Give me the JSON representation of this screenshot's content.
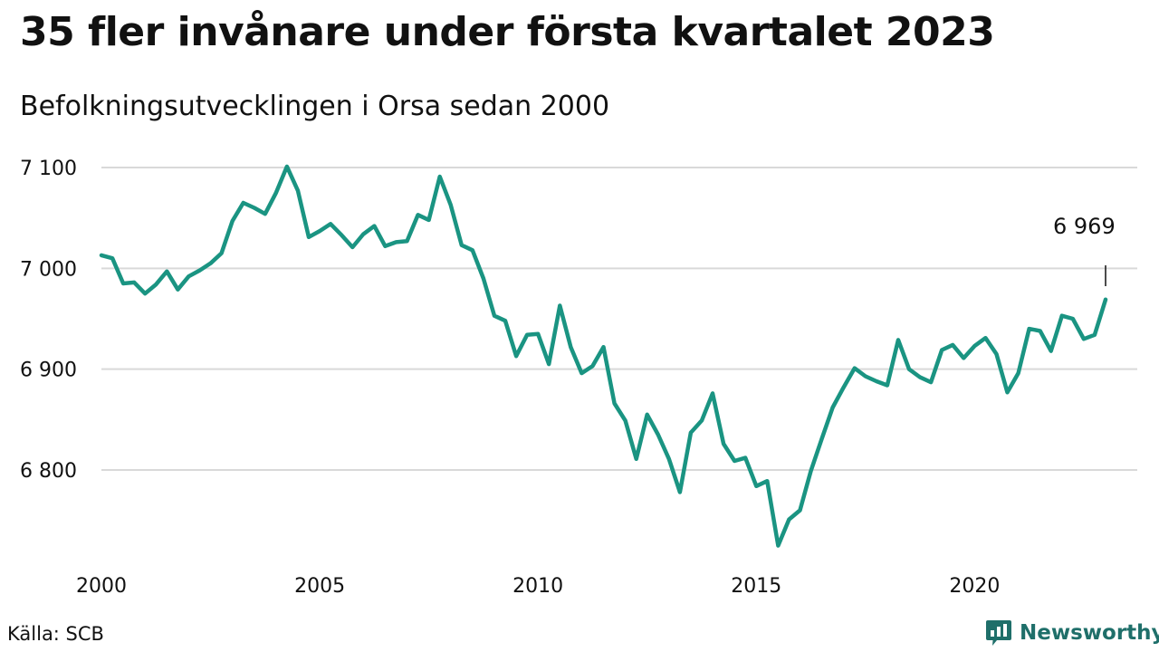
{
  "header": {
    "title": "35 fler invånare under första kvartalet 2023",
    "subtitle": "Befolkningsutvecklingen i Orsa sedan 2000"
  },
  "footer": {
    "source": "Källa: SCB",
    "brand": "Newsworthy"
  },
  "colors": {
    "line": "#1a9482",
    "grid": "#d9d9d9",
    "brand": "#1f6f6a"
  },
  "chart_data": {
    "type": "line",
    "title": "35 fler invånare under första kvartalet 2023",
    "subtitle": "Befolkningsutvecklingen i Orsa sedan 2000",
    "xlabel": "",
    "ylabel": "",
    "x_range": [
      2000,
      2023
    ],
    "ylim": [
      6725,
      7100
    ],
    "y_ticks": [
      6800,
      6900,
      7000,
      7100
    ],
    "y_tick_labels": [
      "6 800",
      "6 900",
      "7 000",
      "7 100"
    ],
    "x_ticks": [
      2000,
      2005,
      2010,
      2015,
      2020
    ],
    "x_tick_labels": [
      "2000",
      "2005",
      "2010",
      "2015",
      "2020"
    ],
    "grid": "horizontal",
    "annotation": {
      "x": 2023,
      "label": "6 969"
    },
    "series": [
      {
        "x": [
          2000,
          2000.25,
          2000.5,
          2000.75,
          2001,
          2001.25,
          2001.5,
          2001.75,
          2002,
          2002.25,
          2002.5,
          2002.75,
          2003,
          2003.25,
          2003.5,
          2003.75,
          2004,
          2004.25,
          2004.5,
          2004.75,
          2005,
          2005.25,
          2005.5,
          2005.75,
          2006,
          2006.25,
          2006.5,
          2006.75,
          2007,
          2007.25,
          2007.5,
          2007.75,
          2008,
          2008.25,
          2008.5,
          2008.75,
          2009,
          2009.25,
          2009.5,
          2009.75,
          2010,
          2010.25,
          2010.5,
          2010.75,
          2011,
          2011.25,
          2011.5,
          2011.75,
          2012,
          2012.25,
          2012.5,
          2012.75,
          2013,
          2013.25,
          2013.5,
          2013.75,
          2014,
          2014.25,
          2014.5,
          2014.75,
          2015,
          2015.25,
          2015.5,
          2015.75,
          2016,
          2016.25,
          2016.5,
          2016.75,
          2017,
          2017.25,
          2017.5,
          2017.75,
          2018,
          2018.25,
          2018.5,
          2018.75,
          2019,
          2019.25,
          2019.5,
          2019.75,
          2020,
          2020.25,
          2020.5,
          2020.75,
          2021,
          2021.25,
          2021.5,
          2021.75,
          2022,
          2022.25,
          2022.5,
          2022.75,
          2023
        ],
        "values": [
          7013,
          7010,
          6985,
          6986,
          6975,
          6984,
          6997,
          6979,
          6992,
          6998,
          7005,
          7015,
          7047,
          7065,
          7060,
          7054,
          7075,
          7101,
          7077,
          7031,
          7037,
          7044,
          7033,
          7021,
          7034,
          7042,
          7022,
          7026,
          7027,
          7053,
          7048,
          7091,
          7063,
          7023,
          7018,
          6990,
          6953,
          6948,
          6913,
          6934,
          6935,
          6905,
          6963,
          6922,
          6896,
          6903,
          6922,
          6866,
          6849,
          6811,
          6855,
          6835,
          6811,
          6778,
          6837,
          6849,
          6876,
          6826,
          6809,
          6812,
          6784,
          6789,
          6725,
          6751,
          6760,
          6799,
          6831,
          6862,
          6882,
          6901,
          6893,
          6888,
          6884,
          6929,
          6900,
          6892,
          6887,
          6919,
          6924,
          6911,
          6923,
          6931,
          6915,
          6877,
          6896,
          6940,
          6938,
          6918,
          6953,
          6950,
          6930,
          6934,
          6969
        ]
      }
    ]
  }
}
